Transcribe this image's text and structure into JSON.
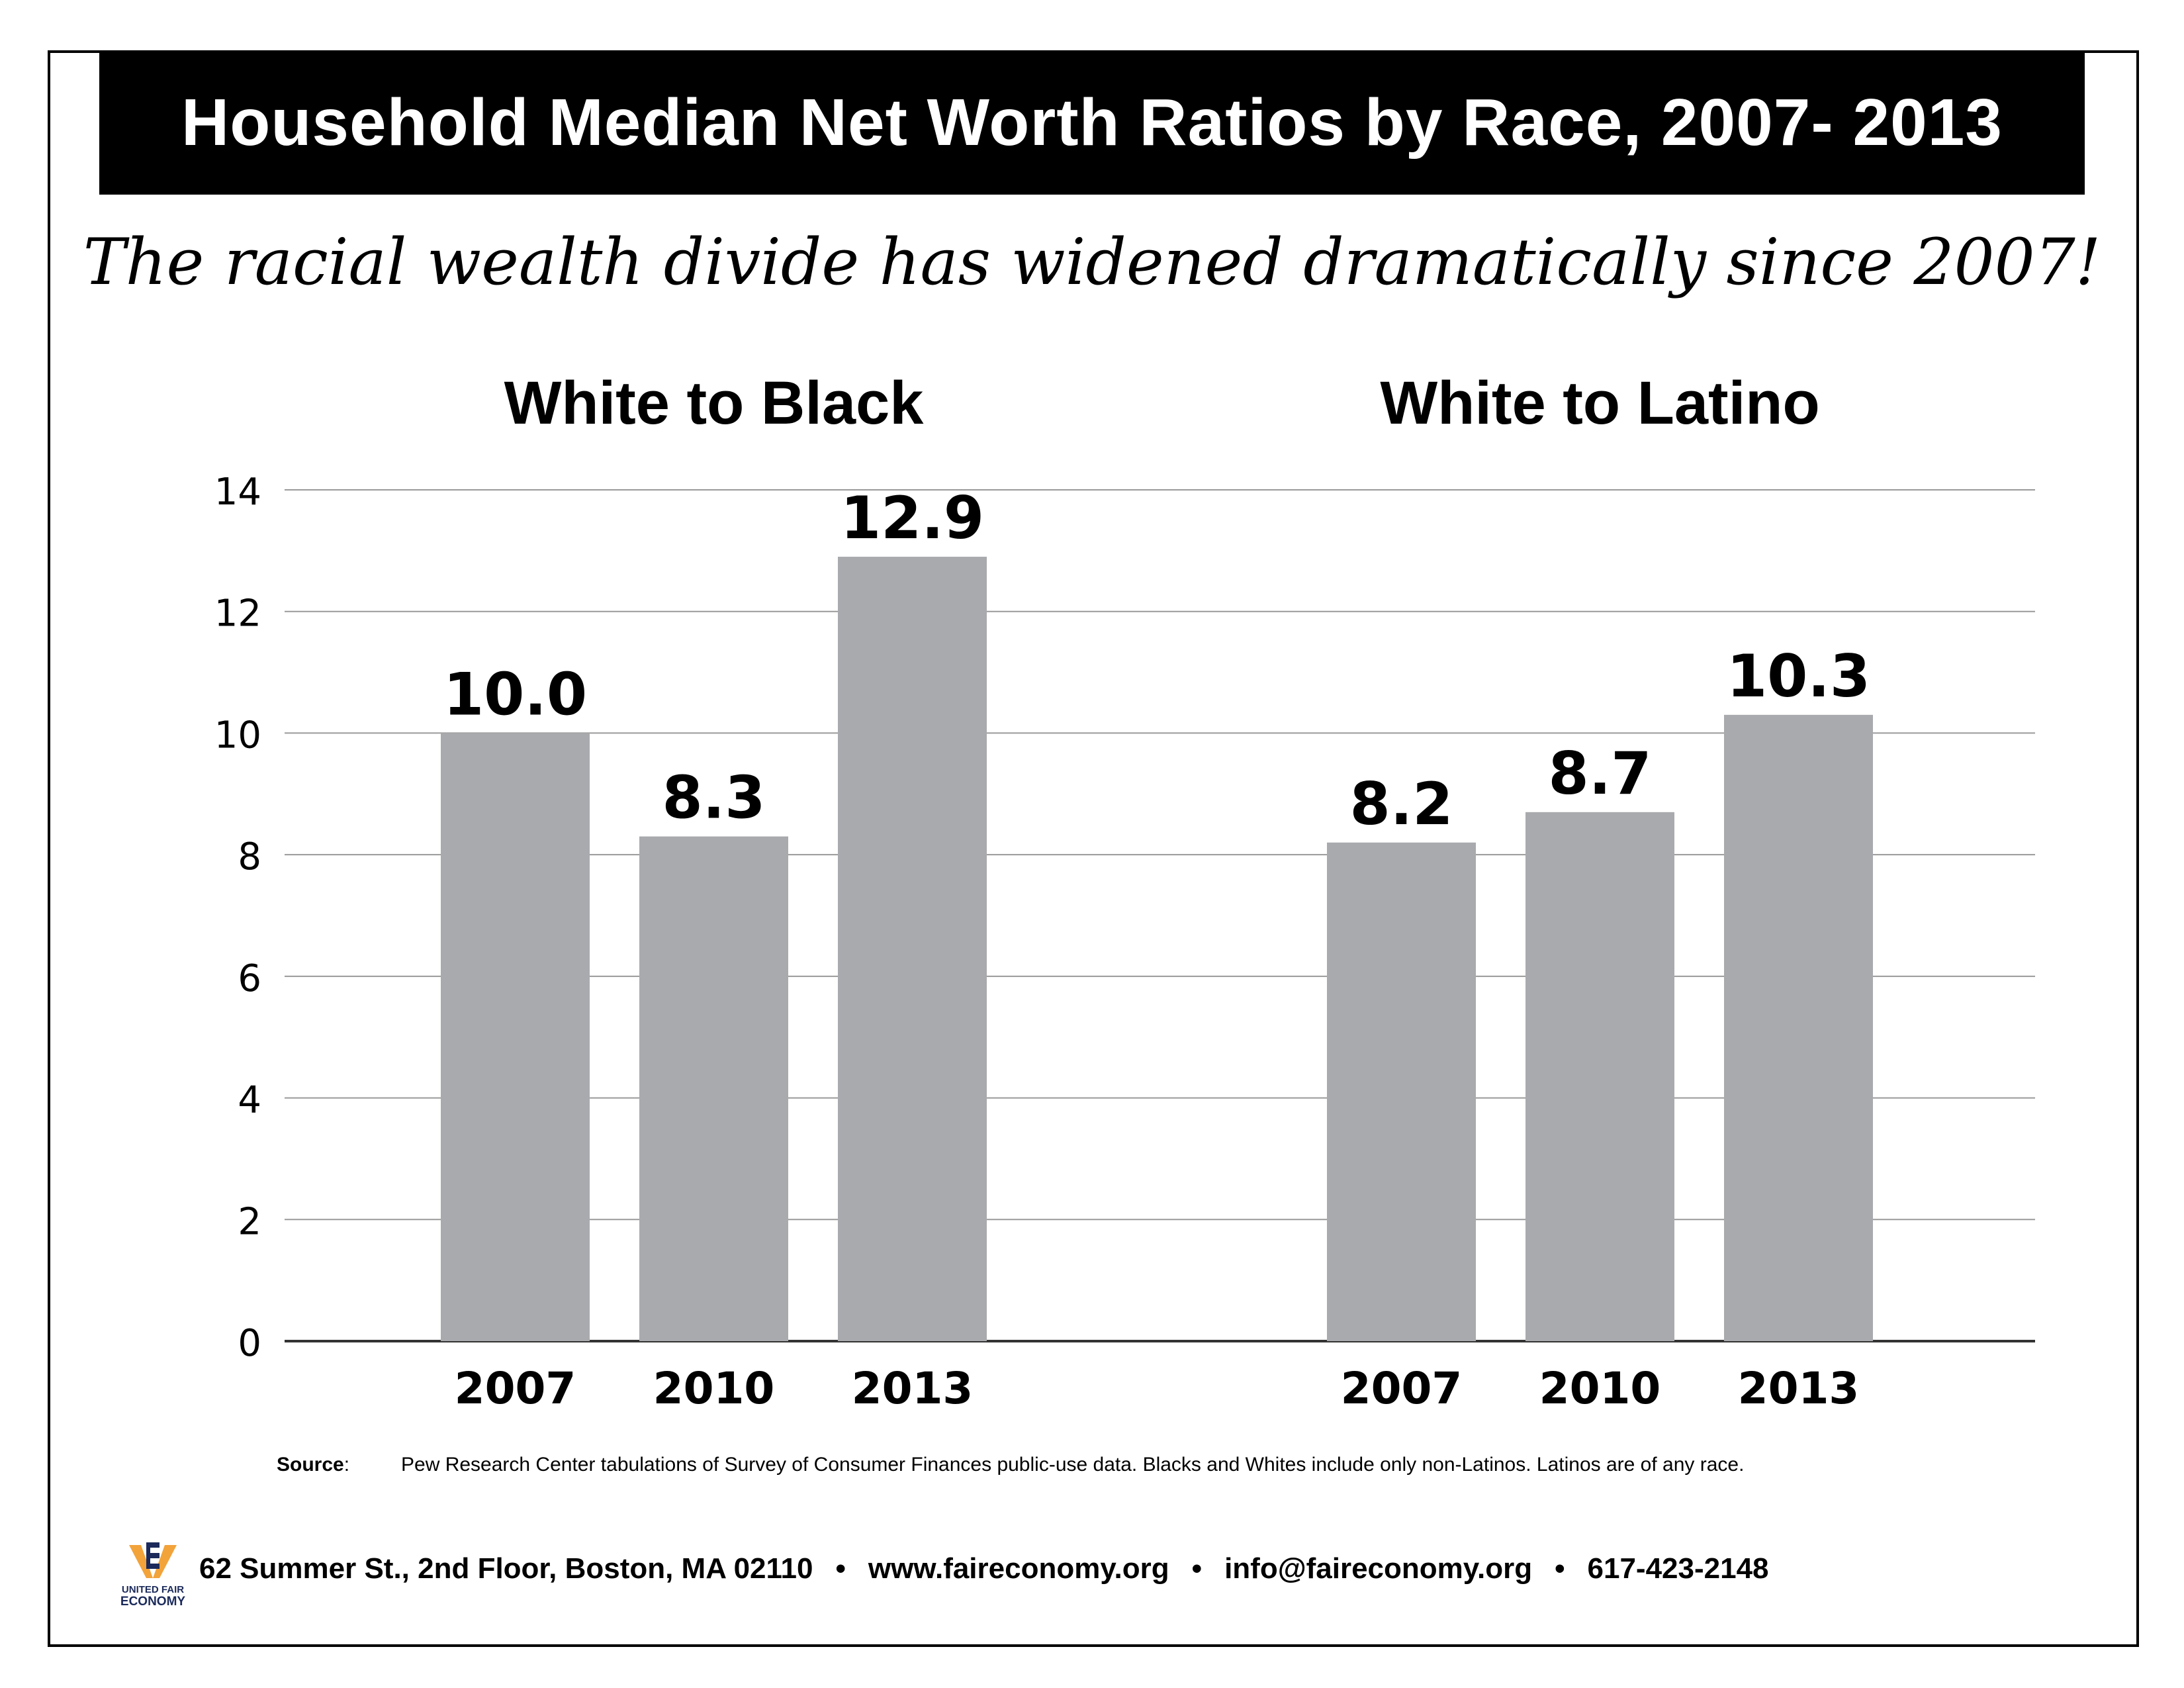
{
  "title": "Household Median Net Worth Ratios by Race, 2007- 2013",
  "subtitle": "The racial wealth divide has widened dramatically since 2007!",
  "chart_data": {
    "type": "bar",
    "ylim": [
      0,
      14
    ],
    "yticks": [
      "0",
      "2",
      "4",
      "6",
      "8",
      "10",
      "12",
      "14"
    ],
    "grid": true,
    "bar_color": "#a9aaad",
    "groups": [
      {
        "name": "White to Black",
        "categories": [
          "2007",
          "2010",
          "2013"
        ],
        "values": [
          10.0,
          8.3,
          12.9
        ],
        "labels": [
          "10.0",
          "8.3",
          "12.9"
        ]
      },
      {
        "name": "White to Latino",
        "categories": [
          "2007",
          "2010",
          "2013"
        ],
        "values": [
          8.2,
          8.7,
          10.3
        ],
        "labels": [
          "8.2",
          "8.7",
          "10.3"
        ]
      }
    ]
  },
  "source": {
    "label": "Source",
    "colon": ":",
    "text": "Pew Research Center tabulations of Survey of Consumer Finances public-use data. Blacks and Whites include only non-Latinos. Latinos are of any race."
  },
  "footer": {
    "logo_line1": "UNITED FAIR",
    "logo_line2": "ECONOMY",
    "address": "62 Summer St., 2nd Floor, Boston, MA 02110",
    "website": "www.faireconomy.org",
    "email": "info@faireconomy.org",
    "phone": "617-423-2148",
    "separator": "•"
  },
  "colors": {
    "bar": "#a9aaad",
    "title_bg": "#000000",
    "logo_orange": "#f2a33a",
    "logo_navy": "#1b2a5a"
  }
}
